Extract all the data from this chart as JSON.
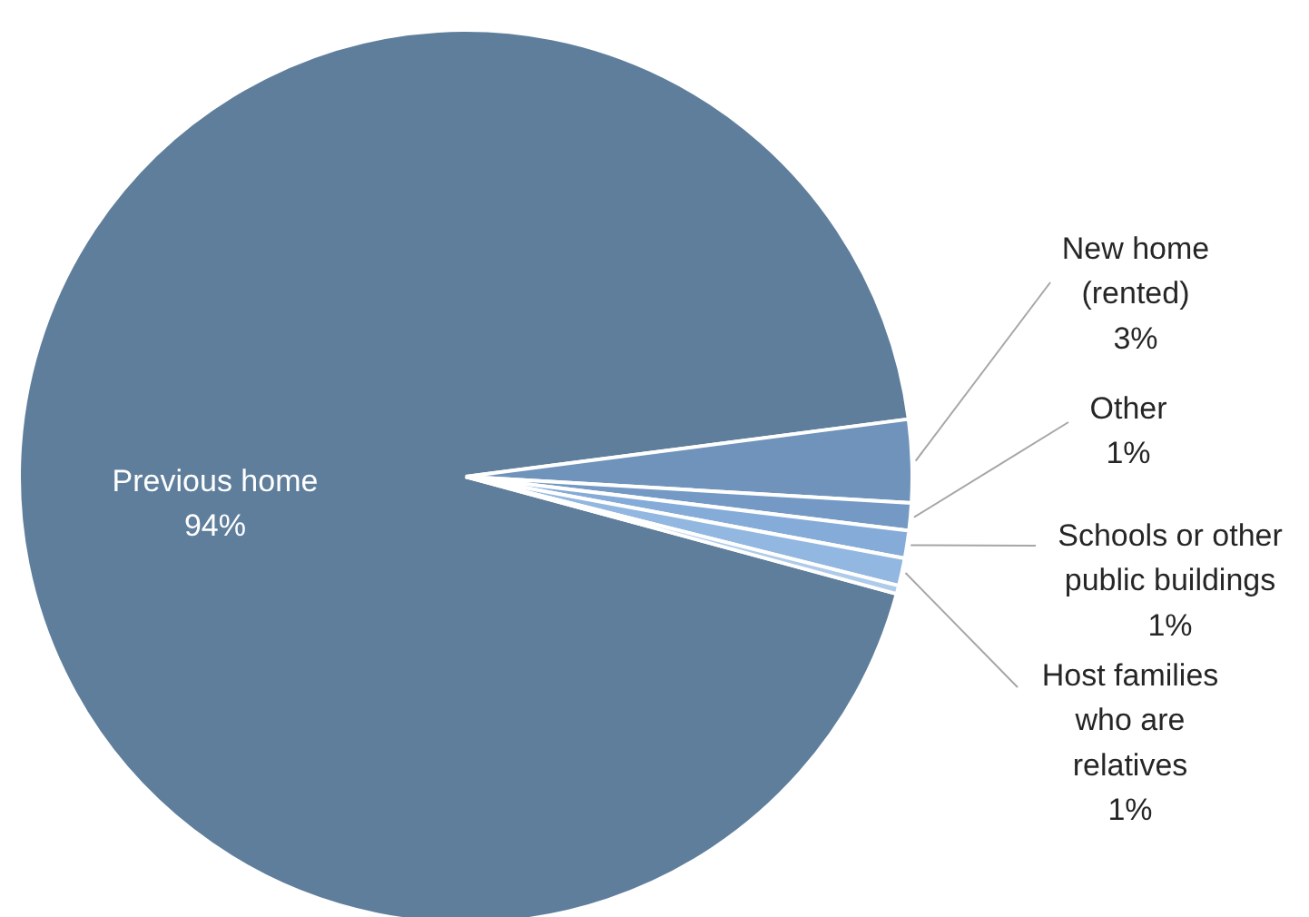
{
  "chart_data": {
    "type": "pie",
    "categories": [
      "Previous home",
      "New home\n(rented)",
      "Other",
      "Schools or other\npublic buildings",
      "Host families\nwho are\nrelatives",
      null
    ],
    "values": [
      94,
      3,
      1,
      1,
      1,
      0.3
    ],
    "value_labels": [
      "94%",
      "3%",
      "1%",
      "1%",
      "1%",
      null
    ],
    "colors": [
      "#5e7e9c",
      "#6f93ba",
      "#7499c4",
      "#85abd8",
      "#92b7e0",
      "#aecbea"
    ]
  }
}
